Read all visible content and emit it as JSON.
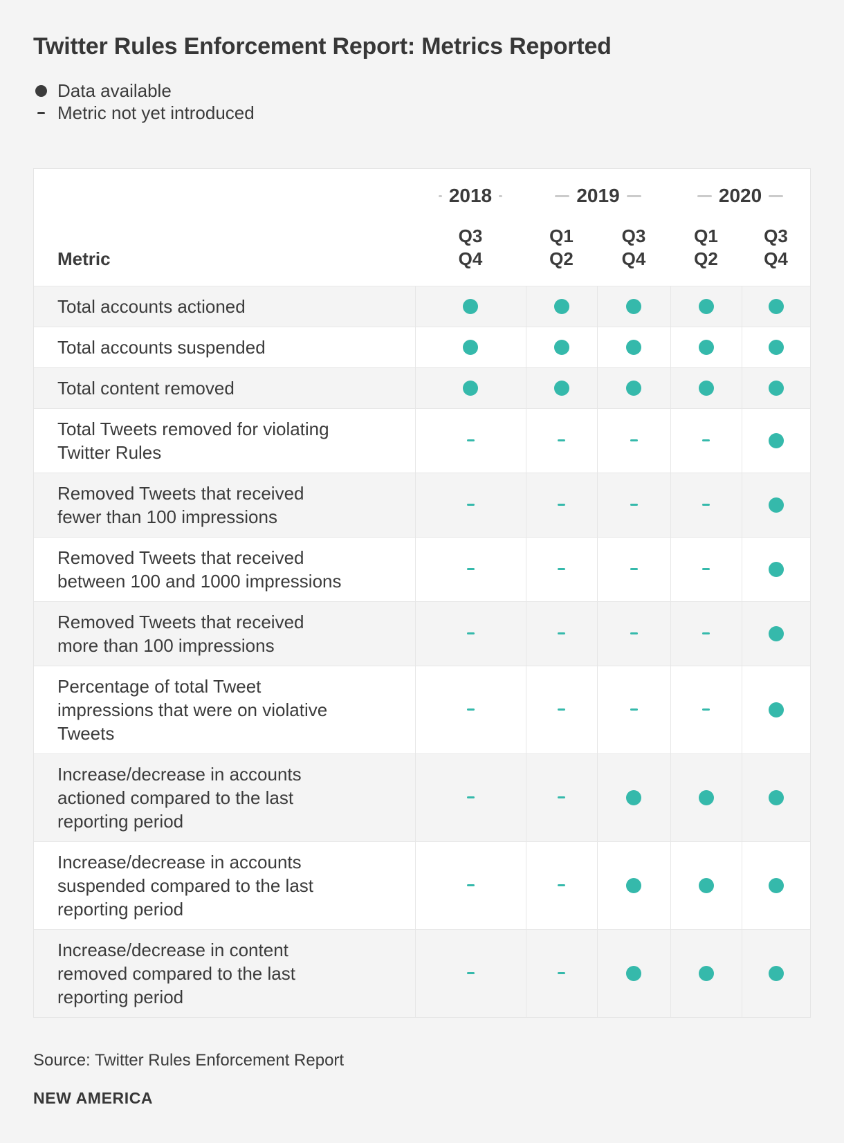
{
  "title": "Twitter Rules Enforcement Report: Metrics Reported",
  "chart_data": {
    "type": "table",
    "title": "Twitter Rules Enforcement Report: Metrics Reported",
    "legend": [
      {
        "symbol": "dot",
        "label": "Data available"
      },
      {
        "symbol": "dash",
        "label": "Metric not yet introduced"
      }
    ],
    "metric_header": "Metric",
    "year_groups": [
      {
        "year": "2018",
        "col_span": 1
      },
      {
        "year": "2019",
        "col_span": 2
      },
      {
        "year": "2020",
        "col_span": 2
      }
    ],
    "quarter_columns": [
      "Q3\nQ4",
      "Q1\nQ2",
      "Q3\nQ4",
      "Q1\nQ2",
      "Q3\nQ4"
    ],
    "columns": [
      "2018 Q3-Q4",
      "2019 Q1-Q2",
      "2019 Q3-Q4",
      "2020 Q1-Q2",
      "2020 Q3-Q4"
    ],
    "rows": [
      {
        "label": "Total accounts actioned",
        "values": [
          "dot",
          "dot",
          "dot",
          "dot",
          "dot"
        ]
      },
      {
        "label": "Total accounts suspended",
        "values": [
          "dot",
          "dot",
          "dot",
          "dot",
          "dot"
        ]
      },
      {
        "label": "Total content removed",
        "values": [
          "dot",
          "dot",
          "dot",
          "dot",
          "dot"
        ]
      },
      {
        "label": "Total Tweets removed for violating\nTwitter Rules",
        "values": [
          "dash",
          "dash",
          "dash",
          "dash",
          "dot"
        ]
      },
      {
        "label": "Removed Tweets that received\nfewer than 100 impressions",
        "values": [
          "dash",
          "dash",
          "dash",
          "dash",
          "dot"
        ]
      },
      {
        "label": "Removed Tweets that received\nbetween 100 and 1000 impressions",
        "values": [
          "dash",
          "dash",
          "dash",
          "dash",
          "dot"
        ]
      },
      {
        "label": "Removed Tweets that received\nmore than 100 impressions",
        "values": [
          "dash",
          "dash",
          "dash",
          "dash",
          "dot"
        ]
      },
      {
        "label": "Percentage of total Tweet\nimpressions that were on violative\nTweets",
        "values": [
          "dash",
          "dash",
          "dash",
          "dash",
          "dot"
        ]
      },
      {
        "label": "Increase/decrease in accounts\nactioned compared to the last\nreporting period",
        "values": [
          "dash",
          "dash",
          "dot",
          "dot",
          "dot"
        ]
      },
      {
        "label": "Increase/decrease in accounts\nsuspended compared to the last\nreporting period",
        "values": [
          "dash",
          "dash",
          "dot",
          "dot",
          "dot"
        ]
      },
      {
        "label": "Increase/decrease in content\nremoved compared to the last\nreporting period",
        "values": [
          "dash",
          "dash",
          "dot",
          "dot",
          "dot"
        ]
      }
    ]
  },
  "source": "Source: Twitter Rules Enforcement Report",
  "brand": "NEW AMERICA",
  "colors": {
    "accent_teal": "#35b9ab",
    "text": "#3b3b3b",
    "page_background": "#f4f4f4",
    "row_stripe": "#f4f4f4",
    "card_background": "#ffffff",
    "grid_line": "#e7e7e7",
    "year_dash": "#cbcbcb"
  }
}
